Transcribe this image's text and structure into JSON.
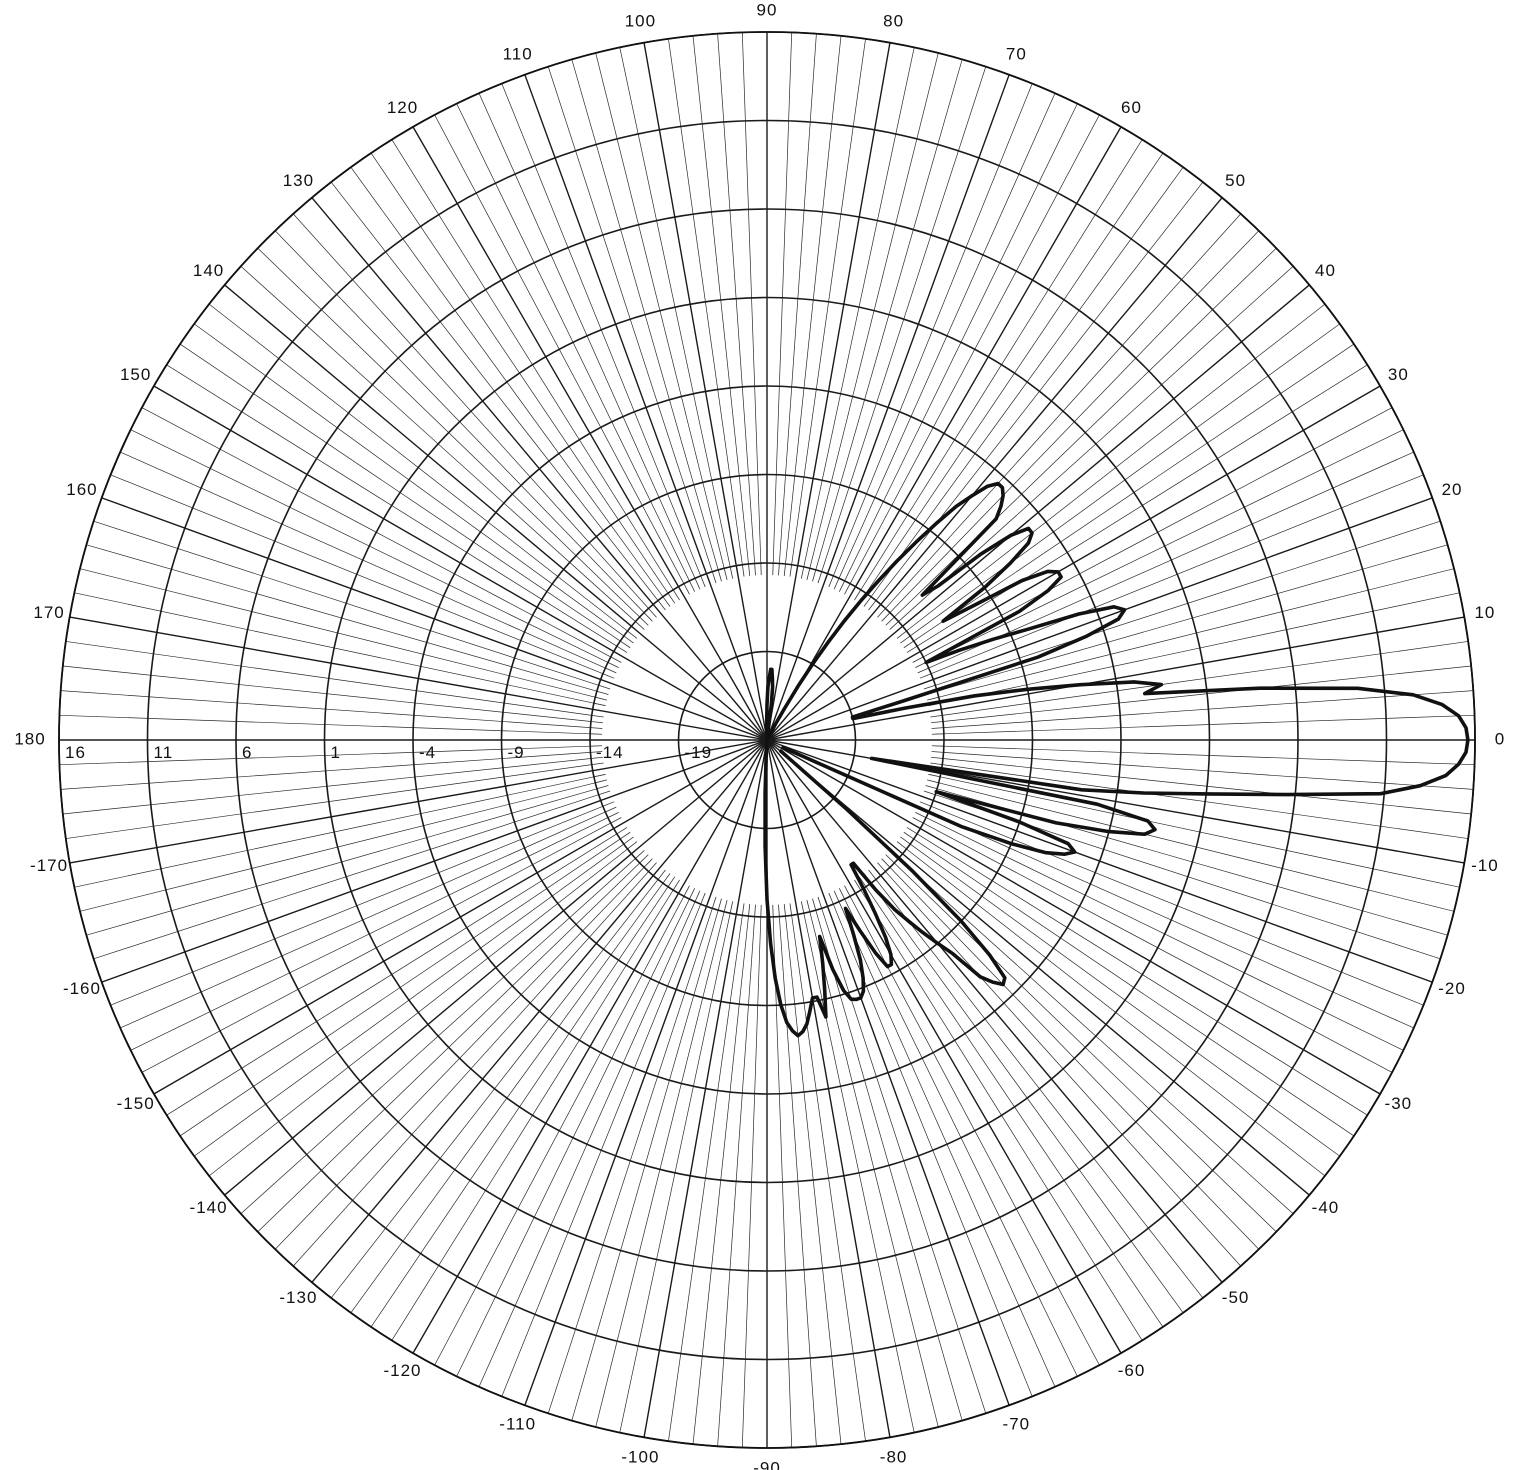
{
  "chart_data": {
    "type": "polar-line",
    "title": "",
    "angle_unit": "degrees",
    "angle_ticks": [
      "0",
      "10",
      "20",
      "30",
      "40",
      "50",
      "60",
      "70",
      "80",
      "90",
      "100",
      "110",
      "120",
      "130",
      "140",
      "150",
      "160",
      "170",
      "180",
      "-170",
      "-160",
      "-150",
      "-140",
      "-130",
      "-120",
      "-110",
      "-100",
      "-90",
      "-80",
      "-70",
      "-60",
      "-50",
      "-40",
      "-30",
      "-20",
      "-10"
    ],
    "radial_ticks": [
      "-19",
      "-14",
      "-9",
      "-4",
      "1",
      "6",
      "11",
      "16"
    ],
    "radial_range": [
      -24,
      16
    ],
    "grid": true,
    "series": [
      {
        "theta": [
          -25,
          -24,
          -23,
          -22,
          -21,
          -20,
          -19,
          -18,
          -17,
          -16,
          -15,
          -14,
          -13,
          -12,
          -11,
          -10,
          -9,
          -8,
          -7,
          -6,
          -5,
          -4,
          -3,
          -2,
          -1,
          0,
          1,
          2,
          3,
          4,
          5,
          6,
          7,
          8,
          9,
          10,
          11,
          12,
          13,
          14,
          15,
          16,
          17,
          18,
          19,
          20,
          21,
          22,
          23,
          24,
          25,
          26,
          27,
          28,
          29,
          30,
          31,
          32,
          33,
          34,
          35,
          36,
          37,
          38,
          39,
          40,
          41,
          42,
          43,
          44,
          45,
          46,
          47,
          48,
          49,
          50,
          51,
          52,
          53,
          54,
          55,
          56,
          57,
          58,
          59,
          60,
          61,
          62,
          63,
          64,
          65,
          66,
          67,
          68,
          69,
          70,
          71,
          72,
          73,
          74,
          75,
          76,
          77,
          78,
          79,
          80,
          81,
          82,
          83,
          84,
          85,
          86,
          87,
          88,
          89,
          90,
          91,
          92,
          93,
          94,
          95,
          96,
          -95,
          -94,
          -93,
          -92,
          -91,
          -90,
          -89,
          -88,
          -87,
          -86,
          -85,
          -84,
          -83,
          -82,
          -81,
          -80,
          -79,
          -78,
          -77,
          -76,
          -75,
          -74,
          -73,
          -72,
          -71,
          -70,
          -69,
          -68,
          -67,
          -66,
          -65,
          -64,
          -63,
          -62,
          -61,
          -60,
          -59,
          -58,
          -57,
          -56,
          -55,
          -54,
          -53,
          -52,
          -51,
          -50,
          -49,
          -48,
          -47,
          -46,
          -45,
          -44,
          -43,
          -42,
          -41,
          -40,
          -39,
          -38,
          -37,
          -36,
          -35,
          -34,
          -33,
          -32,
          -31,
          -30,
          -29,
          -28,
          -27,
          -26,
          -25
        ],
        "r": [
          -23,
          -12,
          -9,
          -7,
          -6,
          -5.5,
          -6,
          -9,
          -14,
          -7,
          -4,
          -2,
          -1.5,
          -2,
          -5,
          -18,
          -6,
          -2.5,
          1,
          5.5,
          10.8,
          13,
          14.4,
          15.1,
          15.5,
          15.6,
          15.5,
          15.1,
          14.2,
          12.6,
          9.5,
          4,
          -2.5,
          -1.5,
          -3,
          -6,
          -9,
          -12,
          -16,
          -19,
          -19,
          -16,
          -8,
          -5,
          -3,
          -2.5,
          -3,
          -5,
          -8,
          -10,
          -12,
          -14,
          -8,
          -6,
          -5,
          -5,
          -5.5,
          -7,
          -10,
          -12,
          -9,
          -7,
          -5.5,
          -5,
          -5,
          -6,
          -8,
          -11,
          -12,
          -6,
          -5.3,
          -4.8,
          -4.5,
          -4.5,
          -5,
          -6,
          -7,
          -8.5,
          -10,
          -11.5,
          -13,
          -14.5,
          -16,
          -17.5,
          -19,
          -20.5,
          -22,
          -23,
          -24,
          -24,
          -24,
          -24,
          -24,
          -24,
          -24,
          -24,
          -24,
          -24,
          -24,
          -24,
          -24,
          -24,
          -24,
          -24,
          -24,
          -24,
          -24,
          -24,
          -22,
          -21,
          -20.5,
          -20,
          -20,
          -20.5,
          -21,
          -22,
          -23,
          -24,
          -24,
          -24,
          -24,
          -24,
          -24,
          -24,
          -23,
          -21,
          -18,
          -15,
          -12.5,
          -10.5,
          -9,
          -8,
          -7.5,
          -7.2,
          -7.4,
          -7.8,
          -8.5,
          -9.2,
          -9.2,
          -8,
          -9.5,
          -11,
          -12.5,
          -10.5,
          -9.2,
          -8.6,
          -8.5,
          -8.5,
          -8.8,
          -9.5,
          -10.5,
          -12,
          -13.5,
          -12,
          -10.5,
          -9.5,
          -9.5,
          -10,
          -11,
          -12.5,
          -14,
          -15.5,
          -15.5,
          -13.5,
          -12,
          -11,
          -10,
          -9,
          -8,
          -6,
          -5.3,
          -4.8,
          -5,
          -6.5,
          -9,
          -13,
          -18,
          -22,
          -23
        ]
      }
    ]
  }
}
